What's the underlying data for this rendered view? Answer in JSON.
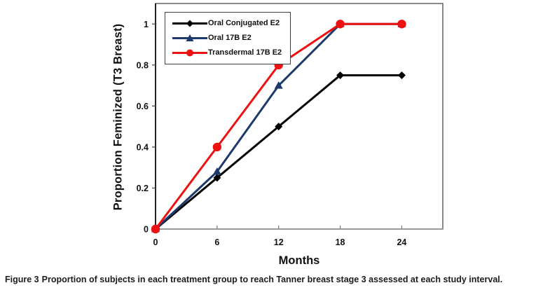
{
  "figure": {
    "caption_prefix": "Figure 3",
    "caption_body": "Proportion of subjects in each treatment group to reach Tanner breast stage 3 assessed at each study interval."
  },
  "chart_data": {
    "type": "line",
    "title": "",
    "xlabel": "Months",
    "ylabel": "Proportion Feminized (T3 Breast)",
    "x": [
      0,
      6,
      12,
      18,
      24
    ],
    "x_tick_labels": [
      "0",
      "6",
      "12",
      "18",
      "24"
    ],
    "y_ticks": [
      0,
      0.2,
      0.4,
      0.6,
      0.8,
      1
    ],
    "y_tick_labels": [
      "0",
      "0.2",
      "0.4",
      "0.6",
      "0.8",
      "1"
    ],
    "xlim": [
      0,
      28
    ],
    "ylim": [
      0,
      1.1
    ],
    "grid": false,
    "legend_position": "top-left-inside",
    "series": [
      {
        "name": "Oral Conjugated E2",
        "marker": "diamond",
        "color": "#000000",
        "values": [
          0,
          0.25,
          0.5,
          0.75,
          0.75
        ]
      },
      {
        "name": "Oral 17B E2",
        "marker": "triangle",
        "color": "#1b3a6b",
        "values": [
          0,
          0.28,
          0.7,
          1,
          1
        ]
      },
      {
        "name": "Transdermal 17B E2",
        "marker": "circle",
        "color": "#ee1111",
        "values": [
          0,
          0.4,
          0.8,
          1,
          1
        ]
      }
    ],
    "frame_color": "#595959",
    "axis_color": "#111111",
    "bottom_axis_color": "#9a9a9a",
    "tick_color": "#7f7f7f",
    "tick_label_color": "#111111"
  }
}
